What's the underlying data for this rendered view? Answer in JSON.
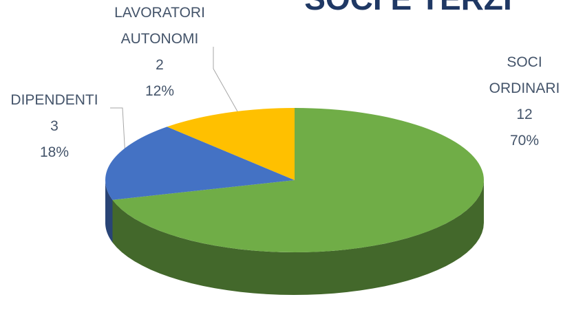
{
  "chart_data": {
    "type": "pie3d",
    "title": "SOCI E TERZI",
    "categories": [
      "SOCI ORDINARI",
      "DIPENDENTI",
      "LAVORATORI AUTONOMI"
    ],
    "values": [
      12,
      3,
      2
    ],
    "percent_labels": [
      "70%",
      "18%",
      "12%"
    ],
    "colors": [
      "#70ad47",
      "#4472c4",
      "#ffc000"
    ]
  }
}
